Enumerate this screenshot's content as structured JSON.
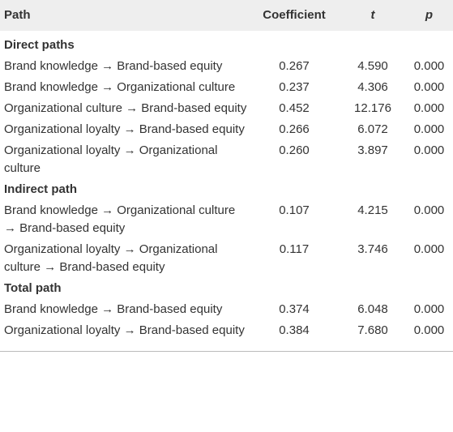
{
  "table": {
    "header": [
      "Path",
      "Coefficient",
      "t",
      "p"
    ],
    "sections": [
      {
        "title": "Direct paths",
        "rows": [
          [
            "Brand knowledge → Brand-based equity",
            "0.267",
            "4.590",
            "0.000"
          ],
          [
            "Brand knowledge → Organizational culture",
            "0.237",
            "4.306",
            "0.000"
          ],
          [
            "Organizational culture → Brand-based equity",
            "0.452",
            "12.176",
            "0.000"
          ],
          [
            "Organizational loyalty → Brand-based equity",
            "0.266",
            "6.072",
            "0.000"
          ],
          [
            "Organizational loyalty → Organizational culture",
            "0.260",
            "3.897",
            "0.000"
          ]
        ]
      },
      {
        "title": "Indirect path",
        "rows": [
          [
            "Brand knowledge → Organizational culture → Brand-based equity",
            "0.107",
            "4.215",
            "0.000"
          ],
          [
            "Organizational loyalty → Organizational culture → Brand-based equity",
            "0.117",
            "3.746",
            "0.000"
          ]
        ]
      },
      {
        "title": "Total path",
        "rows": [
          [
            "Brand knowledge → Brand-based equity",
            "0.374",
            "6.048",
            "0.000"
          ],
          [
            "Organizational loyalty → Brand-based equity",
            "0.384",
            "7.680",
            "0.000"
          ]
        ]
      }
    ]
  }
}
